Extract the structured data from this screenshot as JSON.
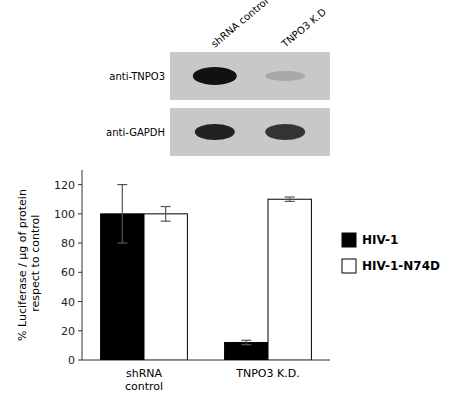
{
  "chart_data": {
    "type": "bar",
    "categories": [
      "shRNA\ncontrol",
      "TNPO3 K.D."
    ],
    "series": [
      {
        "name": "HIV-1",
        "color": "#000000",
        "values": [
          100,
          12
        ],
        "errors": [
          20,
          1.5
        ]
      },
      {
        "name": "HIV-1-N74D",
        "color": "#ffffff",
        "values": [
          100,
          110
        ],
        "errors": [
          5,
          1.5
        ]
      }
    ],
    "y_label": "% Luciferase / µg of protein\n respect to control",
    "ylim": [
      0,
      130
    ],
    "yticks": [
      0,
      20,
      40,
      60,
      80,
      100,
      120
    ],
    "legend": "right",
    "annotations": [
      "anti-TNPO3",
      "anti-GAPDH",
      "shRNA control",
      "TNPO3 K.D"
    ]
  }
}
